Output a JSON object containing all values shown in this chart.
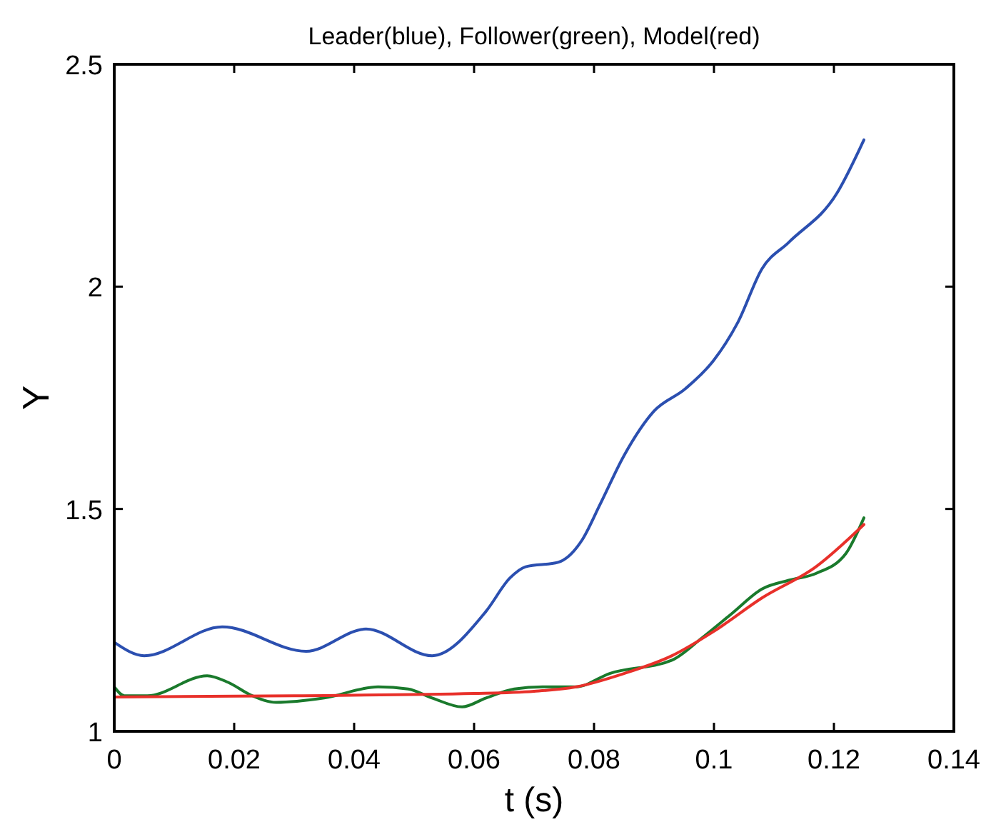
{
  "chart_data": {
    "type": "line",
    "title": "Leader(blue), Follower(green), Model(red)",
    "xlabel": "t (s)",
    "ylabel": "Y",
    "xlim": [
      0,
      0.14
    ],
    "ylim": [
      1,
      2.5
    ],
    "xticks": [
      0,
      0.02,
      0.04,
      0.06,
      0.08,
      0.1,
      0.12,
      0.14
    ],
    "yticks": [
      1,
      1.5,
      2,
      2.5
    ],
    "grid": false,
    "marker": "none",
    "line_style": "solid",
    "series": [
      {
        "color": "#2b4fb0",
        "x": [
          0,
          0.005,
          0.018,
          0.032,
          0.042,
          0.053,
          0.062,
          0.066,
          0.0686,
          0.074,
          0.078,
          0.081,
          0.085,
          0.09,
          0.0952,
          0.1,
          0.104,
          0.108,
          0.1125,
          0.1205,
          0.125
        ],
        "values": [
          1.2,
          1.17,
          1.235,
          1.18,
          1.23,
          1.17,
          1.27,
          1.345,
          1.37,
          1.38,
          1.43,
          1.51,
          1.62,
          1.72,
          1.77,
          1.835,
          1.92,
          2.04,
          2.1,
          2.21,
          2.33
        ]
      },
      {
        "color": "#1a7a2c",
        "x": [
          0,
          0.0017,
          0.0055,
          0.0155,
          0.019,
          0.023,
          0.027,
          0.035,
          0.044,
          0.049,
          0.053,
          0.058,
          0.062,
          0.0667,
          0.0714,
          0.077,
          0.0826,
          0.093,
          0.098,
          0.103,
          0.108,
          0.1126,
          0.117,
          0.122,
          0.125
        ],
        "values": [
          1.1,
          1.08,
          1.08,
          1.125,
          1.11,
          1.08,
          1.065,
          1.075,
          1.1,
          1.095,
          1.075,
          1.055,
          1.075,
          1.095,
          1.1,
          1.1,
          1.13,
          1.16,
          1.21,
          1.265,
          1.32,
          1.34,
          1.355,
          1.4,
          1.48
        ]
      },
      {
        "color": "#e8302a",
        "x": [
          0,
          0.03,
          0.06,
          0.07,
          0.077,
          0.085,
          0.093,
          0.1,
          0.108,
          0.117,
          0.125
        ],
        "values": [
          1.077,
          1.08,
          1.085,
          1.09,
          1.1,
          1.13,
          1.17,
          1.225,
          1.3,
          1.37,
          1.465
        ]
      }
    ]
  }
}
